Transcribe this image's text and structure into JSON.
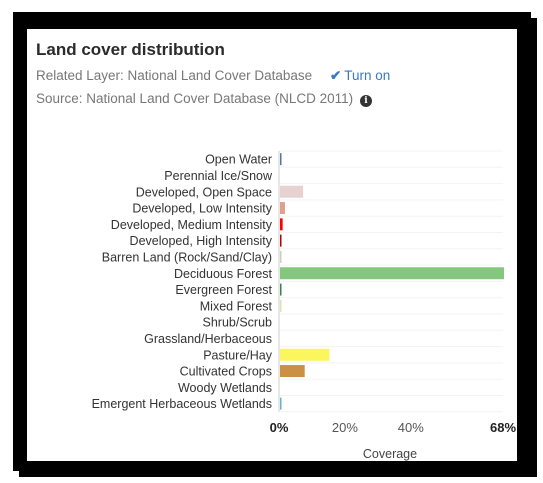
{
  "panel": {
    "title": "Land cover distribution",
    "related_layer": "Related Layer: National Land Cover Database",
    "turn_on_label": "Turn on",
    "check_icon": "check-icon",
    "source": "Source: National Land Cover Database (NLCD 2011)",
    "info_icon": "info-icon"
  },
  "chart_data": {
    "type": "bar",
    "orientation": "horizontal",
    "categories": [
      "Open Water",
      "Perennial Ice/Snow",
      "Developed, Open Space",
      "Developed, Low Intensity",
      "Developed, Medium Intensity",
      "Developed, High Intensity",
      "Barren Land (Rock/Sand/Clay)",
      "Deciduous Forest",
      "Evergreen Forest",
      "Mixed Forest",
      "Shrub/Scrub",
      "Grassland/Herbaceous",
      "Pasture/Hay",
      "Cultivated Crops",
      "Woody Wetlands",
      "Emergent Herbaceous Wetlands"
    ],
    "values": [
      0.3,
      0,
      7,
      1.5,
      0.8,
      0.3,
      0.4,
      68,
      0.4,
      0.1,
      0,
      0,
      15,
      7.5,
      0,
      0.2
    ],
    "colors": [
      "#5475a8",
      "#ffffff",
      "#e8d1d1",
      "#e29e8c",
      "#ff0000",
      "#b50000",
      "#d2cdc0",
      "#85c77e",
      "#38814e",
      "#d4e7b0",
      "#dcca8f",
      "#fde9aa",
      "#fbf65d",
      "#ca9146",
      "#c8e6f8",
      "#64b3d5"
    ],
    "xlim": [
      0,
      68
    ],
    "xticks": [
      "0%",
      "20%",
      "40%",
      "68%"
    ],
    "xtick_values": [
      0,
      20,
      40,
      68
    ],
    "xlabel": "Coverage",
    "grid": true
  }
}
